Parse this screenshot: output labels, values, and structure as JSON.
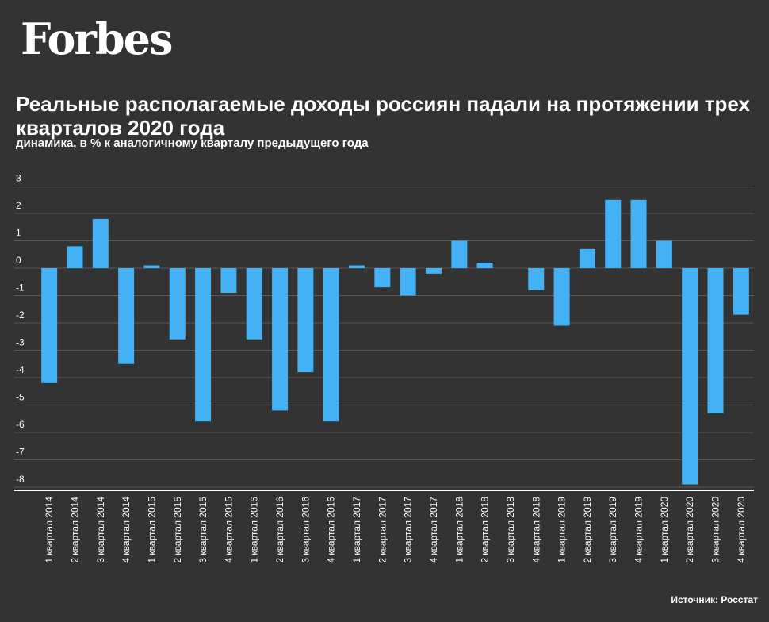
{
  "header": {
    "logo": "Forbes",
    "title": "Реальные располагаемые доходы россиян падали на протяжении трех кварталов 2020 года",
    "subtitle": "динамика, в % к аналогичному кварталу предыдущего года"
  },
  "footer": {
    "source": "Источник: Росстат"
  },
  "colors": {
    "background": "#333333",
    "bar": "#45b1f5",
    "grid": "#5a5a5a",
    "axis": "#ffffff"
  },
  "chart_data": {
    "type": "bar",
    "title": "Реальные располагаемые доходы россиян падали на протяжении трех кварталов 2020 года",
    "subtitle": "динамика, в % к аналогичному кварталу предыдущего года",
    "xlabel": "",
    "ylabel": "",
    "ylim": [
      -8,
      3
    ],
    "yticks": [
      3,
      2,
      1,
      0,
      -1,
      -2,
      -3,
      -4,
      -5,
      -6,
      -7,
      -8
    ],
    "grid": true,
    "legend": "none",
    "categories": [
      "1 квартал 2014",
      "2 квартал 2014",
      "3 квартал 2014",
      "4 квартал 2014",
      "1 квартал 2015",
      "2 квартал 2015",
      "3 квартал 2015",
      "4 квартал 2015",
      "1 квартал 2016",
      "2 квартал 2016",
      "3 квартал 2016",
      "4 квартал 2016",
      "1 квартал 2017",
      "2 квартал 2017",
      "3 квартал 2017",
      "4 квартал 2017",
      "1 квартал 2018",
      "2 квартал 2018",
      "3 квартал 2018",
      "4 квартал 2018",
      "1 квартал 2019",
      "2 квартал 2019",
      "3 квартал 2019",
      "4 квартал 2019",
      "1 квартал 2020",
      "2 квартал 2020",
      "3 квартал 2020",
      "4 квартал 2020"
    ],
    "values": [
      -4.2,
      0.8,
      1.8,
      -3.5,
      0.1,
      -2.6,
      -5.6,
      -0.9,
      -2.6,
      -5.2,
      -3.8,
      -5.6,
      0.1,
      -0.7,
      -1.0,
      -0.2,
      1.0,
      0.2,
      0.0,
      -0.8,
      -2.1,
      0.7,
      2.5,
      2.5,
      1.0,
      -7.9,
      -5.3,
      -1.7
    ]
  }
}
